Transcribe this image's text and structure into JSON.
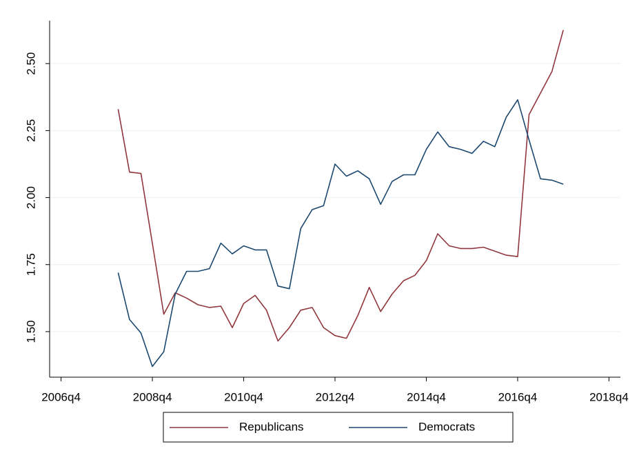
{
  "chart_data": {
    "type": "line",
    "x": [
      "2008q1",
      "2008q2",
      "2008q3",
      "2008q4",
      "2009q1",
      "2009q2",
      "2009q3",
      "2009q4",
      "2010q1",
      "2010q2",
      "2010q3",
      "2010q4",
      "2011q1",
      "2011q2",
      "2011q3",
      "2011q4",
      "2012q1",
      "2012q2",
      "2012q3",
      "2012q4",
      "2013q1",
      "2013q2",
      "2013q3",
      "2013q4",
      "2014q1",
      "2014q2",
      "2014q3",
      "2014q4",
      "2015q1",
      "2015q2",
      "2015q3",
      "2015q4",
      "2016q1",
      "2016q2",
      "2016q3",
      "2016q4",
      "2017q1",
      "2017q2",
      "2017q3",
      "2017q4"
    ],
    "series": [
      {
        "name": "Republicans",
        "color": "#90353b",
        "values": [
          2.33,
          2.095,
          2.09,
          1.83,
          1.565,
          1.645,
          1.625,
          1.6,
          1.59,
          1.595,
          1.515,
          1.605,
          1.635,
          1.58,
          1.465,
          1.515,
          1.58,
          1.59,
          1.515,
          1.485,
          1.475,
          1.56,
          1.665,
          1.575,
          1.64,
          1.69,
          1.71,
          1.765,
          1.865,
          1.82,
          1.81,
          1.81,
          1.815,
          1.8,
          1.785,
          1.78,
          2.31,
          2.39,
          2.47,
          2.625
        ]
      },
      {
        "name": "Democrats",
        "color": "#1a476f",
        "values": [
          1.72,
          1.545,
          1.495,
          1.37,
          1.425,
          1.64,
          1.725,
          1.725,
          1.735,
          1.83,
          1.79,
          1.82,
          1.805,
          1.805,
          1.67,
          1.66,
          1.885,
          1.955,
          1.97,
          2.125,
          2.08,
          2.1,
          2.07,
          1.975,
          2.06,
          2.085,
          2.085,
          2.18,
          2.245,
          2.19,
          2.18,
          2.165,
          2.21,
          2.19,
          2.3,
          2.365,
          2.215,
          2.07,
          2.065,
          2.05
        ]
      }
    ],
    "xlim": [
      "2006q3",
      "2019q1"
    ],
    "xticks": [
      "2006q4",
      "2008q4",
      "2010q4",
      "2012q4",
      "2014q4",
      "2016q4",
      "2018q4"
    ],
    "ylim": [
      1.33,
      2.66
    ],
    "yticks": [
      {
        "value": 1.5,
        "label": "1.50"
      },
      {
        "value": 1.75,
        "label": "1.75"
      },
      {
        "value": 2,
        "label": "2.00"
      },
      {
        "value": 2.25,
        "label": "2.25"
      },
      {
        "value": 2.5,
        "label": "2.50"
      }
    ],
    "grid": true,
    "legend": "bottom"
  }
}
